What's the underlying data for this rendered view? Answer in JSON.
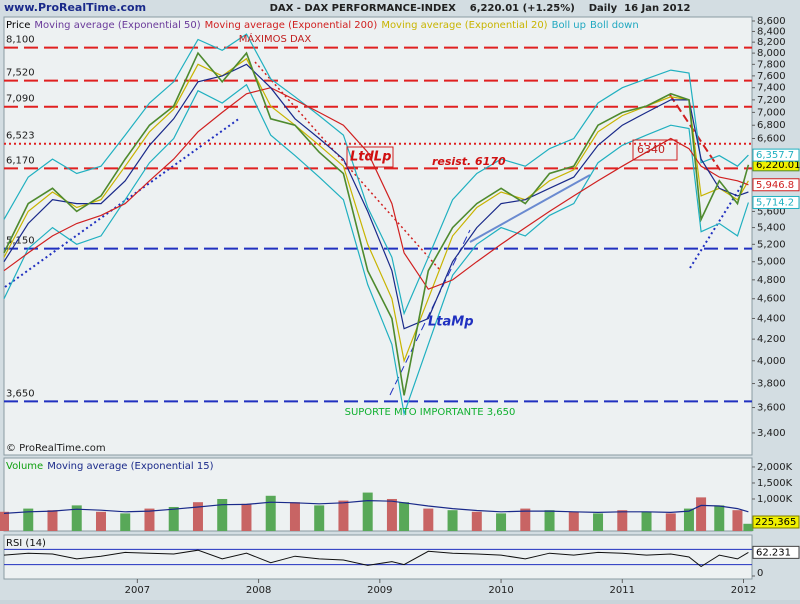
{
  "chart_data": [
    {
      "type": "line",
      "title": "DAX - DAX PERFORMANCE-INDEX    6,220.01 (+1.25%)    Daily  16 Jan 2012",
      "watermark": "www.ProRealTime.com",
      "credit": "© ProRealTime.com",
      "log_scale": true,
      "x": [
        2005.9,
        2006.1,
        2006.3,
        2006.5,
        2006.7,
        2006.9,
        2007.1,
        2007.3,
        2007.5,
        2007.7,
        2007.9,
        2008.1,
        2008.3,
        2008.5,
        2008.7,
        2008.9,
        2009.1,
        2009.2,
        2009.4,
        2009.6,
        2009.8,
        2010.0,
        2010.2,
        2010.4,
        2010.6,
        2010.8,
        2011.0,
        2011.2,
        2011.4,
        2011.55,
        2011.65,
        2011.8,
        2011.95,
        2012.04
      ],
      "xlim": [
        2005.9,
        2012.07
      ],
      "xticks": [
        2007,
        2008,
        2009,
        2010,
        2011,
        2012
      ],
      "ylim": [
        3235,
        8678
      ],
      "yticks": [
        {
          "value": 3400,
          "label": "3,400"
        },
        {
          "value": 3600,
          "label": "3,600"
        },
        {
          "value": 3800,
          "label": "3,800"
        },
        {
          "value": 4000,
          "label": "4,000"
        },
        {
          "value": 4200,
          "label": "4,200"
        },
        {
          "value": 4400,
          "label": "4,400"
        },
        {
          "value": 4600,
          "label": "4,600"
        },
        {
          "value": 4800,
          "label": "4,800"
        },
        {
          "value": 5000,
          "label": "5,000"
        },
        {
          "value": 5200,
          "label": "5,200"
        },
        {
          "value": 5400,
          "label": "5,400"
        },
        {
          "value": 5600,
          "label": "5,600"
        },
        {
          "value": 6600,
          "label": "6,600"
        },
        {
          "value": 6800,
          "label": "6,800"
        },
        {
          "value": 7000,
          "label": "7,000"
        },
        {
          "value": 7200,
          "label": "7,200"
        },
        {
          "value": 7400,
          "label": "7,400"
        },
        {
          "value": 7600,
          "label": "7,600"
        },
        {
          "value": 7800,
          "label": "7,800"
        },
        {
          "value": 8000,
          "label": "8,000"
        },
        {
          "value": 8200,
          "label": "8,200"
        },
        {
          "value": 8400,
          "label": "8,400"
        },
        {
          "value": 8600,
          "label": "8,600"
        }
      ],
      "series": [
        {
          "name": "Price",
          "color": "#4e8a2e",
          "legend_color": "#000000",
          "last_label": "6,220.01",
          "values": [
            5100,
            5700,
            5900,
            5600,
            5800,
            6300,
            6800,
            7100,
            8000,
            7500,
            8000,
            6900,
            6800,
            6400,
            6100,
            4900,
            4400,
            3700,
            4900,
            5400,
            5700,
            5900,
            5700,
            6100,
            6200,
            6800,
            7000,
            7100,
            7300,
            7200,
            5500,
            6000,
            5700,
            6220.01
          ]
        },
        {
          "name": "Moving average (Exponential 50)",
          "color": "#1a2a8a",
          "legend_color": "#6a3a9a",
          "values": [
            5000,
            5450,
            5750,
            5700,
            5700,
            6000,
            6500,
            6900,
            7500,
            7600,
            7800,
            7400,
            6900,
            6600,
            6300,
            5600,
            4900,
            4300,
            4400,
            5000,
            5400,
            5700,
            5750,
            5900,
            6050,
            6500,
            6800,
            7000,
            7200,
            7200,
            6300,
            5900,
            5800,
            5850
          ]
        },
        {
          "name": "Moving average (Exponential 200)",
          "color": "#d02020",
          "legend_color": "#d02020",
          "last_label": "5,946.8",
          "values": [
            4900,
            5100,
            5300,
            5450,
            5550,
            5700,
            6000,
            6300,
            6700,
            7000,
            7300,
            7400,
            7200,
            7000,
            6800,
            6400,
            5700,
            5100,
            4700,
            4800,
            5000,
            5200,
            5400,
            5600,
            5800,
            6000,
            6200,
            6400,
            6600,
            6450,
            6200,
            6050,
            6000,
            5946.8
          ]
        },
        {
          "name": "Moving average (Exponential 20)",
          "color": "#c8b400",
          "legend_color": "#c8b400",
          "values": [
            5050,
            5600,
            5850,
            5650,
            5750,
            6200,
            6700,
            7050,
            7800,
            7600,
            7900,
            7100,
            6800,
            6500,
            6200,
            5200,
            4600,
            4000,
            4600,
            5300,
            5650,
            5850,
            5750,
            6000,
            6150,
            6700,
            6950,
            7100,
            7250,
            7200,
            5800,
            5900,
            5750,
            6000
          ]
        },
        {
          "name": "Boll up",
          "color": "#20b0c0",
          "legend_color": "#20a8c0",
          "last_label": "6,357.7",
          "values": [
            5500,
            6050,
            6300,
            6100,
            6200,
            6650,
            7150,
            7500,
            8250,
            8050,
            8350,
            7550,
            7250,
            6950,
            6650,
            5650,
            5050,
            4450,
            5050,
            5750,
            6100,
            6300,
            6200,
            6450,
            6600,
            7150,
            7400,
            7550,
            7700,
            7650,
            6250,
            6350,
            6200,
            6357.7
          ]
        },
        {
          "name": "Boll down",
          "color": "#20b0c0",
          "legend_color": "#20a8c0",
          "last_label": "5,714.2",
          "values": [
            4600,
            5150,
            5400,
            5200,
            5300,
            5750,
            6250,
            6600,
            7350,
            7150,
            7450,
            6650,
            6350,
            6050,
            5750,
            4750,
            4150,
            3550,
            4150,
            4850,
            5200,
            5400,
            5300,
            5550,
            5700,
            6250,
            6500,
            6650,
            6800,
            6750,
            5350,
            5450,
            5300,
            5714.2
          ]
        }
      ],
      "levels": [
        {
          "value": 8100,
          "label": "8,100",
          "color": "#e02020",
          "style": "dashed"
        },
        {
          "value": 7520,
          "label": "7,520",
          "color": "#e02020",
          "style": "dashed"
        },
        {
          "value": 7090,
          "label": "7,090",
          "color": "#e02020",
          "style": "dashed"
        },
        {
          "value": 6523,
          "label": "6,523",
          "color": "#e02020",
          "style": "dotted"
        },
        {
          "value": 6170,
          "label": "6,170",
          "color": "#e02020",
          "style": "dashed"
        },
        {
          "value": 5150,
          "label": "5,150",
          "color": "#2030c0",
          "style": "dashed"
        },
        {
          "value": 3650,
          "label": "3,650",
          "color": "#2030c0",
          "style": "dashed"
        }
      ],
      "annotations": [
        {
          "text": "MÁXIMOS DAX",
          "color": "#c02020"
        },
        {
          "text": "LtdLp",
          "color": "#d01010"
        },
        {
          "text": "resist. 6170",
          "color": "#d01010"
        },
        {
          "text": "6340",
          "color": "#c02020"
        },
        {
          "text": "LtaMp",
          "color": "#2030c0"
        },
        {
          "text": "SUPORTE MTO IMPORTANTE 3,650",
          "color": "#10b030"
        }
      ]
    },
    {
      "type": "bar",
      "legend": "Volume",
      "line_name": "Moving average (Exponential 15)",
      "color": "#c86464",
      "line_color": "#1a2a8a",
      "last_label": "225,365",
      "values": [
        600000,
        700000,
        650000,
        800000,
        600000,
        550000,
        700000,
        750000,
        900000,
        1000000,
        850000,
        1100000,
        900000,
        800000,
        950000,
        1200000,
        1000000,
        900000,
        700000,
        650000,
        600000,
        550000,
        700000,
        650000,
        600000,
        550000,
        650000,
        600000,
        550000,
        700000,
        1050000,
        800000,
        650000,
        225365
      ],
      "ema": [
        550000,
        600000,
        620000,
        680000,
        650000,
        600000,
        620000,
        680000,
        750000,
        820000,
        830000,
        900000,
        880000,
        850000,
        880000,
        950000,
        930000,
        880000,
        780000,
        700000,
        640000,
        600000,
        620000,
        620000,
        600000,
        580000,
        600000,
        600000,
        580000,
        620000,
        800000,
        780000,
        700000,
        600000
      ],
      "ylim": [
        0,
        2280000
      ],
      "yticks": [
        {
          "value": 1000000,
          "label": "1,000K"
        },
        {
          "value": 1500000,
          "label": "1,500K"
        },
        {
          "value": 2000000,
          "label": "2,000K"
        }
      ]
    },
    {
      "type": "line",
      "legend": "RSI (14)",
      "color": "#101010",
      "last_label": "62.231",
      "values": [
        55,
        60,
        58,
        45,
        52,
        62,
        60,
        58,
        68,
        45,
        60,
        35,
        52,
        45,
        42,
        28,
        38,
        30,
        65,
        60,
        58,
        55,
        45,
        60,
        55,
        62,
        60,
        55,
        58,
        50,
        25,
        55,
        45,
        62.231
      ],
      "levels": [
        70,
        30
      ],
      "ylim": [
        0,
        100
      ],
      "yticks": [
        0
      ]
    }
  ]
}
